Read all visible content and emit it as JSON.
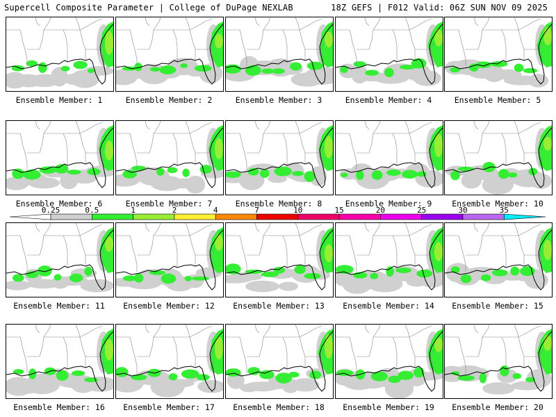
{
  "header": {
    "left_title": "Supercell Composite Parameter | College of DuPage NEXLAB",
    "right_title": "18Z GEFS | F012 Valid: 06Z SUN NOV 09 2025"
  },
  "caption_prefix": "Ensemble Member: ",
  "members": [
    {
      "label": "Ensemble Member: 1"
    },
    {
      "label": "Ensemble Member: 2"
    },
    {
      "label": "Ensemble Member: 3"
    },
    {
      "label": "Ensemble Member: 4"
    },
    {
      "label": "Ensemble Member: 5"
    },
    {
      "label": "Ensemble Member: 6"
    },
    {
      "label": "Ensemble Member: 7"
    },
    {
      "label": "Ensemble Member: 8"
    },
    {
      "label": "Ensemble Member: 9"
    },
    {
      "label": "Ensemble Member: 10"
    },
    {
      "label": "Ensemble Member: 11"
    },
    {
      "label": "Ensemble Member: 12"
    },
    {
      "label": "Ensemble Member: 13"
    },
    {
      "label": "Ensemble Member: 14"
    },
    {
      "label": "Ensemble Member: 15"
    },
    {
      "label": "Ensemble Member: 16"
    },
    {
      "label": "Ensemble Member: 17"
    },
    {
      "label": "Ensemble Member: 18"
    },
    {
      "label": "Ensemble Member: 19"
    },
    {
      "label": "Ensemble Member: 20"
    }
  ],
  "legend": {
    "ticks": [
      "0.25",
      "0.5",
      "1",
      "2",
      "4",
      "7",
      "10",
      "15",
      "20",
      "25",
      "30",
      "35"
    ],
    "colors": [
      "#d0d0d0",
      "#33ee33",
      "#99ee33",
      "#ffee33",
      "#ff8800",
      "#ee0000",
      "#ee0066",
      "#ff00aa",
      "#ee00ee",
      "#9900ee",
      "#bb66ee",
      "#00eeff"
    ],
    "arrow_left_color": "#ffffff",
    "arrow_right_color": "#00eeff"
  },
  "colors": {
    "field_light": "#d0d0d0",
    "field_green": "#33ee33",
    "field_lime": "#99ee33"
  }
}
